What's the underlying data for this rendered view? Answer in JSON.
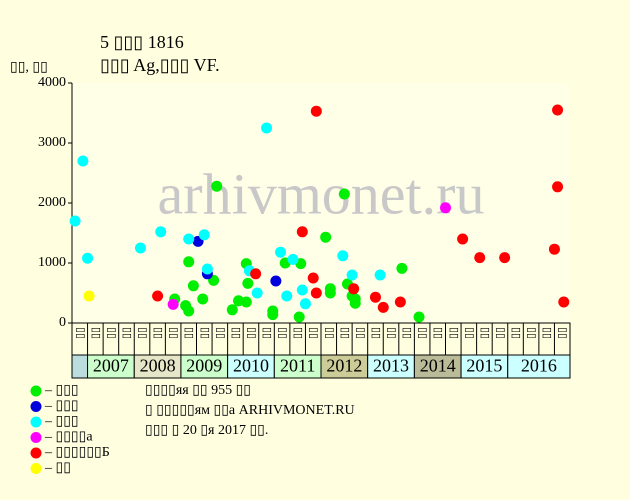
{
  "chart_data": {
    "type": "scatter",
    "title": "5 ▯▯▯ 1816",
    "subtitle": "▯▯▯ Ag,▯▯▯ VF.",
    "y_label": "▯▯, ▯▯",
    "watermark": "arhivmonet.ru",
    "ylim": [
      0,
      4000
    ],
    "yticks": [
      0,
      1000,
      2000,
      3000,
      4000
    ],
    "xlim": [
      0,
      32
    ],
    "xticks": [
      {
        "value": 0.5,
        "label": "▯▯"
      },
      {
        "value": 1.5,
        "label": "▯▯"
      },
      {
        "value": 2.5,
        "label": "▯▯"
      },
      {
        "value": 3.5,
        "label": "▯▯"
      },
      {
        "value": 4.5,
        "label": "▯▯"
      },
      {
        "value": 5.5,
        "label": "▯▯"
      },
      {
        "value": 6.5,
        "label": "▯▯"
      },
      {
        "value": 7.5,
        "label": "▯▯"
      },
      {
        "value": 8.5,
        "label": "▯▯"
      },
      {
        "value": 9.5,
        "label": "▯▯"
      },
      {
        "value": 10.5,
        "label": "▯▯"
      },
      {
        "value": 11.5,
        "label": "▯▯"
      },
      {
        "value": 12.5,
        "label": "▯▯"
      },
      {
        "value": 13.5,
        "label": "▯▯"
      },
      {
        "value": 14.5,
        "label": "▯▯"
      },
      {
        "value": 15.5,
        "label": "▯▯"
      },
      {
        "value": 16.5,
        "label": "▯▯"
      },
      {
        "value": 17.5,
        "label": "▯▯"
      },
      {
        "value": 18.5,
        "label": "▯▯"
      },
      {
        "value": 19.5,
        "label": "▯▯"
      },
      {
        "value": 20.5,
        "label": "▯▯"
      },
      {
        "value": 21.5,
        "label": "▯▯"
      },
      {
        "value": 22.5,
        "label": "▯▯"
      },
      {
        "value": 23.5,
        "label": "▯▯"
      },
      {
        "value": 24.5,
        "label": "▯▯"
      },
      {
        "value": 25.5,
        "label": "▯▯"
      },
      {
        "value": 26.5,
        "label": "▯▯"
      },
      {
        "value": 27.5,
        "label": "▯▯"
      },
      {
        "value": 28.5,
        "label": "▯▯"
      },
      {
        "value": 29.5,
        "label": "▯▯"
      },
      {
        "value": 30.5,
        "label": "▯▯"
      },
      {
        "value": 31.5,
        "label": "▯▯"
      }
    ],
    "year_bands": [
      {
        "label": "2007",
        "start": 1,
        "end": 4,
        "color": "#ccffcc"
      },
      {
        "label": "2008",
        "start": 4,
        "end": 7,
        "color": "#e6e6c8"
      },
      {
        "label": "2009",
        "start": 7,
        "end": 10,
        "color": "#ccffcc"
      },
      {
        "label": "2010",
        "start": 10,
        "end": 13,
        "color": "#ccffff"
      },
      {
        "label": "2011",
        "start": 13,
        "end": 16,
        "color": "#ccffcc"
      },
      {
        "label": "2012",
        "start": 16,
        "end": 19,
        "color": "#cccc99"
      },
      {
        "label": "2013",
        "start": 19,
        "end": 22,
        "color": "#ccffff"
      },
      {
        "label": "2014",
        "start": 22,
        "end": 25,
        "color": "#bbbb99"
      },
      {
        "label": "2015",
        "start": 25,
        "end": 28,
        "color": "#ccffff"
      },
      {
        "label": "2016",
        "start": 28,
        "end": 32,
        "color": "#ccffff"
      }
    ],
    "series": [
      {
        "name": "– ▯▯▯",
        "color": "#00ee00",
        "x": [
          6.6,
          7.3,
          7.5,
          7.5,
          7.8,
          8.4,
          9.1,
          9.3,
          10.3,
          10.7,
          11.2,
          11.2,
          11.3,
          12.9,
          12.9,
          13.7,
          14.6,
          14.7,
          16.3,
          16.6,
          16.6,
          17.5,
          17.7,
          18.0,
          18.2,
          18.2,
          21.2,
          22.3
        ],
        "values": [
          400,
          290,
          200,
          1020,
          620,
          400,
          710,
          2280,
          220,
          370,
          350,
          990,
          660,
          200,
          140,
          1000,
          100,
          990,
          1430,
          570,
          500,
          2150,
          650,
          450,
          400,
          330,
          910,
          100
        ]
      },
      {
        "name": "– ▯▯▯",
        "color": "#0000dd",
        "x": [
          8.1,
          8.7,
          13.1
        ],
        "values": [
          1360,
          820,
          700
        ]
      },
      {
        "name": "– ▯▯▯",
        "color": "#00ffff",
        "x": [
          0.2,
          0.7,
          1.0,
          4.4,
          5.7,
          7.5,
          8.5,
          8.7,
          11.4,
          11.9,
          12.5,
          13.4,
          13.8,
          14.2,
          14.8,
          15.0,
          17.4,
          18.0,
          19.8
        ],
        "values": [
          1700,
          2700,
          1080,
          1250,
          1520,
          1400,
          1470,
          900,
          870,
          500,
          3250,
          1180,
          450,
          1060,
          550,
          320,
          1120,
          800,
          800
        ]
      },
      {
        "name": "– ▯▯▯▯а",
        "color": "#ff00ff",
        "x": [
          6.5,
          24.0
        ],
        "values": [
          310,
          1920
        ]
      },
      {
        "name": "– ▯▯▯▯▯▯Б",
        "color": "#ff0000",
        "x": [
          5.5,
          11.8,
          14.8,
          15.7,
          15.5,
          15.7,
          18.1,
          19.5,
          20.0,
          21.1,
          25.1,
          26.2,
          27.8,
          31.2,
          31.2,
          31.0,
          31.6
        ],
        "values": [
          450,
          820,
          1520,
          3530,
          750,
          500,
          570,
          430,
          260,
          350,
          1400,
          1090,
          1090,
          3550,
          2270,
          1230,
          350
        ]
      },
      {
        "name": "– ▯▯",
        "color": "#ffff00",
        "x": [
          1.1
        ],
        "values": [
          450
        ]
      }
    ],
    "notes": [
      "▯▯▯▯яя ▯▯ 955 ▯▯",
      "▯ ▯▯▯▯▯ям ▯▯а ARHIVMONET.RU",
      "▯▯▯ ▯ 20 ▯я 2017 ▯▯."
    ]
  }
}
